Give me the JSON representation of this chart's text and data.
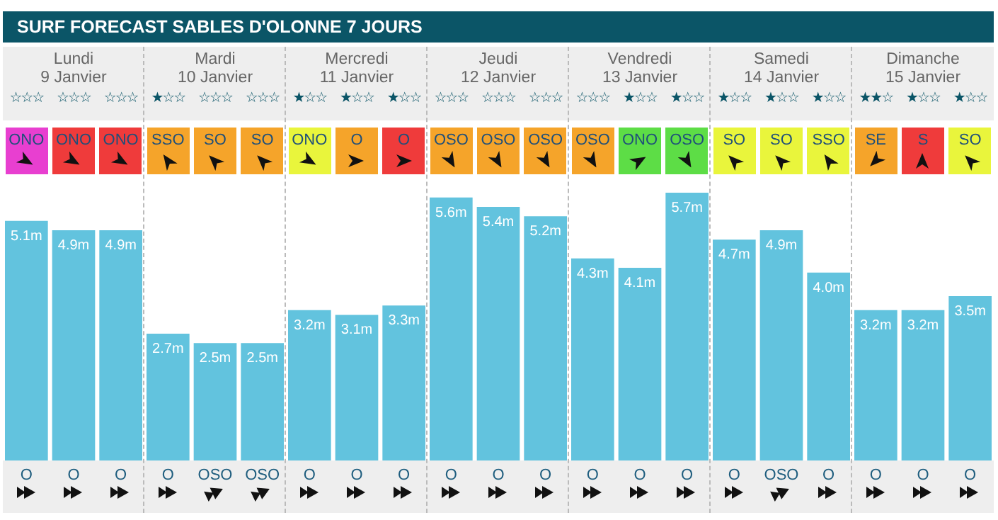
{
  "chart_data": {
    "type": "bar",
    "title": "SURF FORECAST SABLES D'OLONNE 7 JOURS",
    "categories": [
      "O",
      "O",
      "O",
      "O",
      "OSO",
      "OSO",
      "O",
      "O",
      "O",
      "O",
      "O",
      "O",
      "O",
      "O",
      "O",
      "O",
      "OSO",
      "O",
      "O",
      "O",
      "O"
    ],
    "values": [
      5.1,
      4.9,
      4.9,
      2.7,
      2.5,
      2.5,
      3.2,
      3.1,
      3.3,
      5.6,
      5.4,
      5.2,
      4.3,
      4.1,
      5.7,
      4.7,
      4.9,
      4.0,
      3.2,
      3.2,
      3.5
    ],
    "value_labels": [
      "5.1m",
      "4.9m",
      "4.9m",
      "2.7m",
      "2.5m",
      "2.5m",
      "3.2m",
      "3.1m",
      "3.3m",
      "5.6m",
      "5.4m",
      "5.2m",
      "4.3m",
      "4.1m",
      "5.7m",
      "4.7m",
      "4.9m",
      "4.0m",
      "3.2m",
      "3.2m",
      "3.5m"
    ],
    "color": "#62c3de",
    "annotations": [
      "Lundi\n9 Janvier",
      "Mardi\n10 Janvier",
      "Mercredi\n11 Janvier",
      "Jeudi\n12 Janvier",
      "Vendredi\n13 Janvier",
      "Samedi\n14 Janvier",
      "Dimanche\n15 Janvier",
      "☆☆☆",
      "☆☆☆",
      "☆☆☆",
      "★☆☆",
      "☆☆☆",
      "☆☆☆",
      "★☆☆",
      "★☆☆",
      "★☆☆",
      "☆☆☆",
      "☆☆☆",
      "☆☆☆",
      "☆☆☆",
      "★☆☆",
      "★☆☆",
      "★☆☆",
      "★☆☆",
      "★☆☆",
      "★★☆",
      "★☆☆",
      "★☆☆",
      "ONO",
      "ONO",
      "ONO",
      "SSO",
      "SO",
      "SO",
      "ONO",
      "O",
      "O",
      "OSO",
      "OSO",
      "OSO",
      "OSO",
      "ONO",
      "OSO",
      "SO",
      "SO",
      "SSO",
      "SE",
      "S",
      "SO"
    ]
  }
}
